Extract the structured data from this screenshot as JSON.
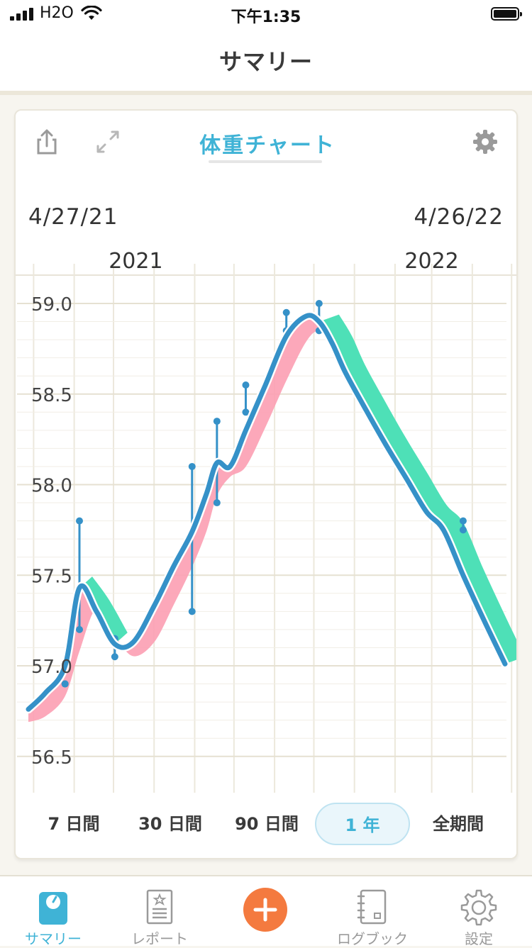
{
  "status": {
    "carrier": "H2O",
    "time": "下午1:35"
  },
  "nav": {
    "title": "サマリー"
  },
  "card": {
    "title": "体重チャート",
    "date_start": "4/27/21",
    "date_end": "4/26/22",
    "year_labels": [
      "2021",
      "2022"
    ],
    "icons": {
      "share": "share-icon",
      "expand": "expand-icon",
      "settings": "gear-icon"
    }
  },
  "chart_data": {
    "type": "line",
    "title": "",
    "xlabel": "",
    "ylabel": "",
    "xlim": [
      "2021-04-27",
      "2022-04-26"
    ],
    "ylim": [
      56.35,
      59.1
    ],
    "y_ticks": [
      "59.0",
      "58.5",
      "58.0",
      "57.5",
      "57.0",
      "56.5"
    ],
    "x_tick_labels": [
      "2021",
      "2022"
    ],
    "grid": true,
    "series": [
      {
        "kind": "trend",
        "color": "#3591c8",
        "x": [
          "2021-04-27",
          "2021-05-10",
          "2021-05-25",
          "2021-06-05",
          "2021-06-18",
          "2021-07-02",
          "2021-07-16",
          "2021-08-01",
          "2021-08-16",
          "2021-08-30",
          "2021-09-10",
          "2021-09-18",
          "2021-09-28",
          "2021-10-10",
          "2021-10-25",
          "2021-11-10",
          "2021-11-25",
          "2021-12-05",
          "2021-12-15",
          "2021-12-25",
          "2022-01-10",
          "2022-01-25",
          "2022-02-10",
          "2022-02-25",
          "2022-03-10",
          "2022-03-25",
          "2022-04-10",
          "2022-04-26"
        ],
        "values": [
          56.76,
          56.85,
          57.0,
          57.43,
          57.3,
          57.12,
          57.13,
          57.33,
          57.55,
          57.74,
          57.95,
          58.12,
          58.1,
          58.3,
          58.55,
          58.82,
          58.93,
          58.9,
          58.78,
          58.62,
          58.41,
          58.22,
          58.03,
          57.85,
          57.75,
          57.5,
          57.25,
          57.01
        ]
      },
      {
        "kind": "measurements",
        "color": "#3591c8",
        "points": [
          {
            "date": "2021-05-25",
            "min": 56.9,
            "max": 56.9
          },
          {
            "date": "2021-06-05",
            "min": 57.2,
            "max": 57.8
          },
          {
            "date": "2021-07-02",
            "min": 57.05,
            "max": 57.15
          },
          {
            "date": "2021-08-30",
            "min": 57.3,
            "max": 58.1
          },
          {
            "date": "2021-09-18",
            "min": 57.9,
            "max": 58.35
          },
          {
            "date": "2021-10-10",
            "min": 58.4,
            "max": 58.55
          },
          {
            "date": "2021-11-10",
            "min": 58.85,
            "max": 58.95
          },
          {
            "date": "2021-12-05",
            "min": 58.85,
            "max": 59.0
          },
          {
            "date": "2022-03-25",
            "min": 57.75,
            "max": 57.8
          }
        ]
      }
    ],
    "bands": {
      "above_color": "#4ee0b7",
      "below_color": "#fc9fb3"
    }
  },
  "ranges": {
    "items": [
      "7 日間",
      "30 日間",
      "90 日間",
      "1 年",
      "全期間"
    ],
    "active_index": 3
  },
  "tabs": [
    {
      "label": "サマリー",
      "icon": "scale-icon",
      "active": true
    },
    {
      "label": "レポート",
      "icon": "report-icon",
      "active": false
    },
    {
      "label": "",
      "icon": "plus-icon",
      "active": false
    },
    {
      "label": "ログブック",
      "icon": "logbook-icon",
      "active": false
    },
    {
      "label": "設定",
      "icon": "gear-icon",
      "active": false
    }
  ],
  "colors": {
    "accent": "#3fb3d6",
    "add_button": "#f47a3f",
    "line": "#3591c8"
  }
}
